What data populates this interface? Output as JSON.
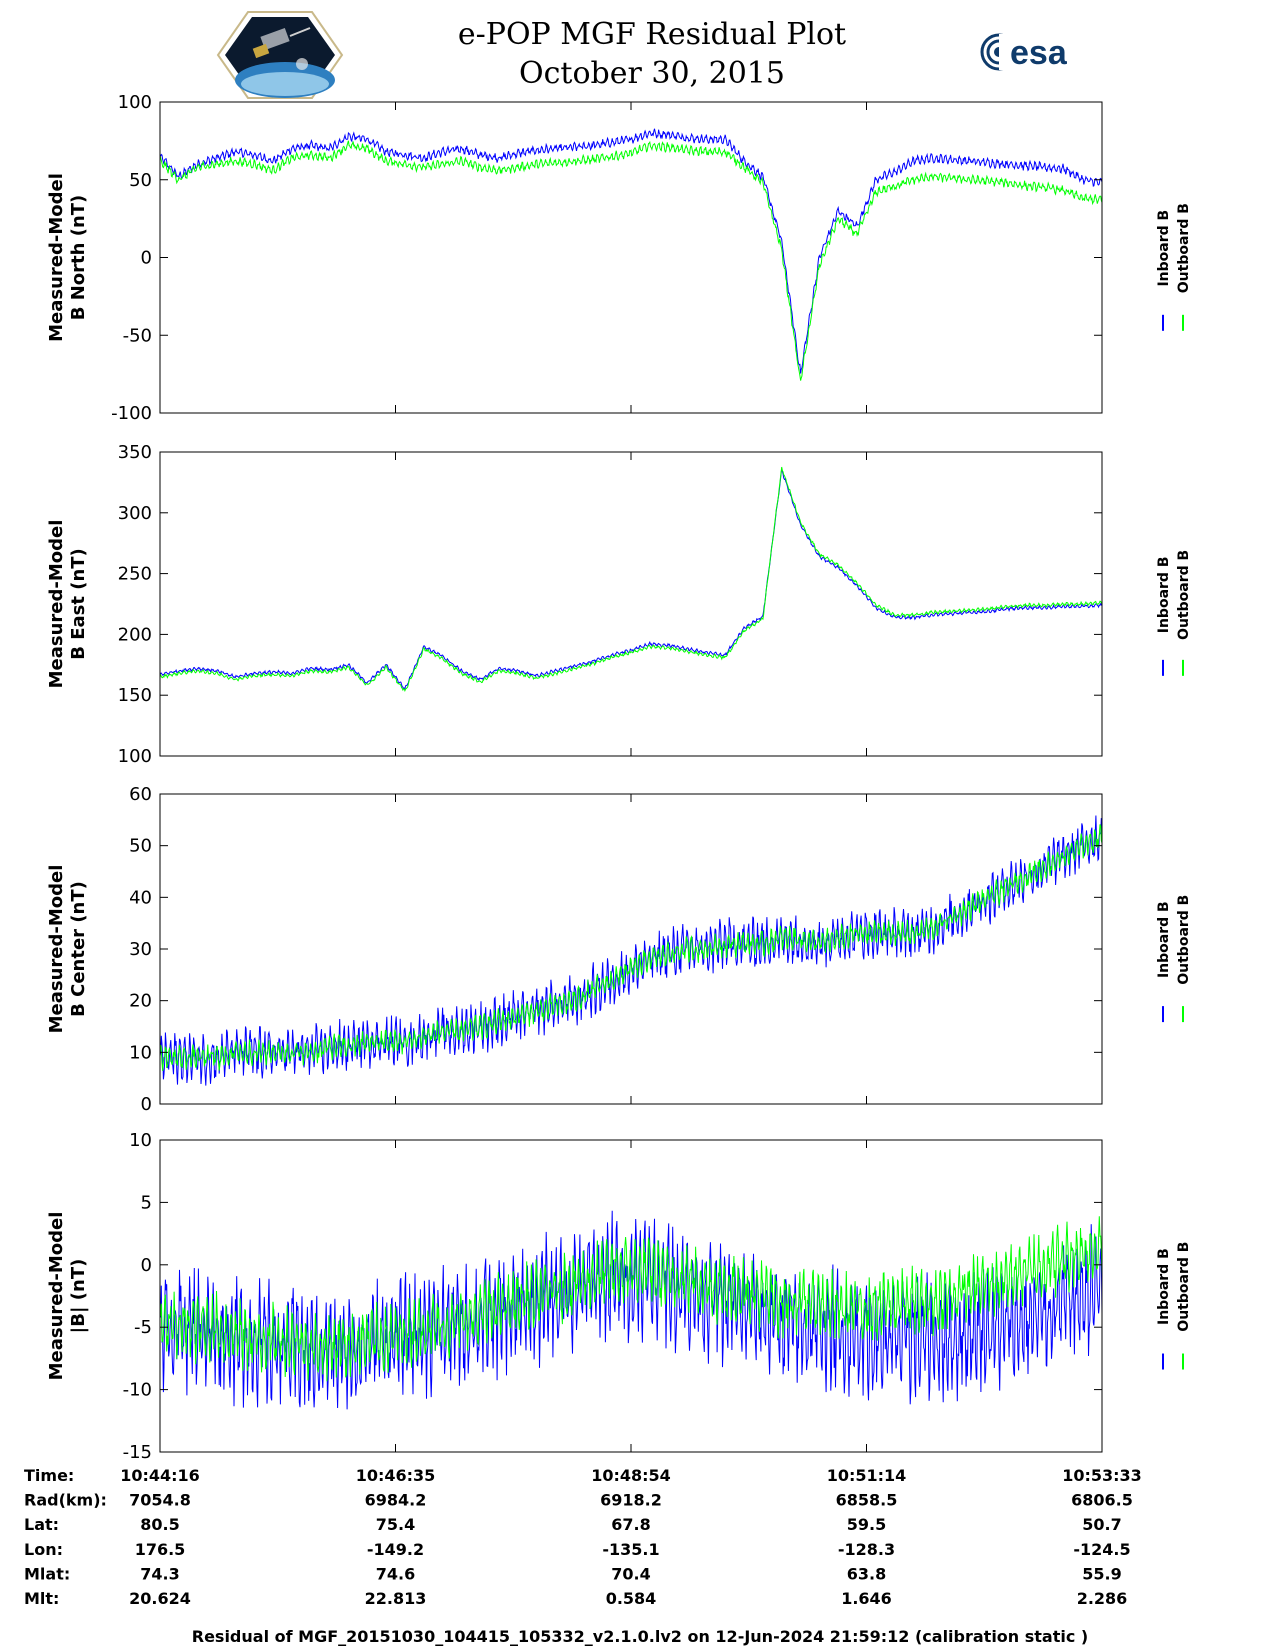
{
  "figure": {
    "title_line1": "e-POP MGF Residual Plot",
    "title_line2": "October 30, 2015",
    "footer": "Residual of MGF_20151030_104415_105332_v2.1.0.lv2 on 12-Jun-2024 21:59:12 (calibration static )",
    "logo_left": "cassiope-mission-patch",
    "logo_right": "esa",
    "colors": {
      "inboard": "#0000ff",
      "outboard": "#00ff00",
      "axis": "#000000"
    }
  },
  "chart_data": [
    {
      "type": "line",
      "ylabel_line1": "Measured-Model",
      "ylabel_line2": "B North (nT)",
      "ylim": [
        -100,
        100
      ],
      "yticks": [
        100,
        50,
        0,
        -50,
        -100
      ],
      "legend": [
        "Inboard B",
        "Outboard B"
      ],
      "x": [
        0,
        2,
        4,
        6,
        8,
        10,
        12,
        14,
        16,
        18,
        20,
        22,
        24,
        26,
        28,
        30,
        32,
        34,
        36,
        38,
        40,
        42,
        44,
        46,
        48,
        50,
        52,
        54,
        56,
        58,
        60,
        62,
        64,
        66,
        68,
        70,
        72,
        74,
        76,
        78,
        80,
        82,
        84,
        86,
        88,
        90,
        92,
        94,
        96,
        98,
        100
      ],
      "series": [
        {
          "name": "Inboard B",
          "color": "#0000ff",
          "noise": 3,
          "values": [
            65,
            52,
            60,
            64,
            68,
            66,
            62,
            70,
            72,
            70,
            78,
            76,
            68,
            66,
            64,
            68,
            70,
            66,
            64,
            67,
            69,
            70,
            71,
            72,
            74,
            76,
            80,
            79,
            77,
            76,
            76,
            62,
            52,
            10,
            -75,
            0,
            30,
            20,
            50,
            55,
            62,
            64,
            63,
            62,
            61,
            60,
            59,
            58,
            57,
            50,
            48
          ]
        },
        {
          "name": "Outboard B",
          "color": "#00ff00",
          "noise": 3,
          "values": [
            62,
            50,
            58,
            60,
            62,
            60,
            56,
            64,
            66,
            64,
            72,
            70,
            62,
            60,
            58,
            60,
            62,
            58,
            56,
            58,
            60,
            61,
            62,
            63,
            65,
            67,
            72,
            71,
            69,
            68,
            68,
            58,
            48,
            5,
            -80,
            -5,
            25,
            15,
            42,
            46,
            50,
            52,
            51,
            50,
            49,
            48,
            46,
            45,
            43,
            38,
            37
          ]
        }
      ]
    },
    {
      "type": "line",
      "ylabel_line1": "Measured-Model",
      "ylabel_line2": "B East (nT)",
      "ylim": [
        100,
        350
      ],
      "yticks": [
        350,
        300,
        250,
        200,
        150,
        100
      ],
      "legend": [
        "Inboard B",
        "Outboard B"
      ],
      "x": [
        0,
        2,
        4,
        6,
        8,
        10,
        12,
        14,
        16,
        18,
        20,
        22,
        24,
        26,
        28,
        30,
        32,
        34,
        36,
        38,
        40,
        42,
        44,
        46,
        48,
        50,
        52,
        54,
        56,
        58,
        60,
        62,
        64,
        66,
        68,
        70,
        72,
        74,
        76,
        78,
        80,
        82,
        84,
        86,
        88,
        90,
        92,
        94,
        96,
        98,
        100
      ],
      "series": [
        {
          "name": "Inboard B",
          "color": "#0000ff",
          "noise": 1.5,
          "values": [
            167,
            170,
            172,
            170,
            165,
            168,
            169,
            168,
            172,
            171,
            175,
            160,
            175,
            155,
            190,
            182,
            170,
            163,
            172,
            170,
            166,
            170,
            174,
            178,
            183,
            187,
            192,
            191,
            188,
            185,
            183,
            205,
            215,
            335,
            290,
            264,
            255,
            240,
            222,
            214,
            214,
            216,
            217,
            218,
            219,
            221,
            222,
            222,
            223,
            223,
            224
          ]
        },
        {
          "name": "Outboard B",
          "color": "#00ff00",
          "noise": 1.5,
          "values": [
            165,
            168,
            170,
            168,
            163,
            166,
            167,
            166,
            170,
            169,
            173,
            158,
            173,
            153,
            188,
            180,
            168,
            161,
            170,
            168,
            164,
            168,
            172,
            176,
            181,
            185,
            190,
            189,
            186,
            183,
            181,
            203,
            213,
            337,
            292,
            266,
            257,
            242,
            224,
            216,
            216,
            218,
            219,
            220,
            221,
            223,
            224,
            224,
            225,
            225,
            226
          ]
        }
      ]
    },
    {
      "type": "line",
      "ylabel_line1": "Measured-Model",
      "ylabel_line2": "B Center (nT)",
      "ylim": [
        0,
        60
      ],
      "yticks": [
        60,
        50,
        40,
        30,
        20,
        10,
        0
      ],
      "legend": [
        "Inboard B",
        "Outboard B"
      ],
      "x": [
        0,
        2,
        4,
        6,
        8,
        10,
        12,
        14,
        16,
        18,
        20,
        22,
        24,
        26,
        28,
        30,
        32,
        34,
        36,
        38,
        40,
        42,
        44,
        46,
        48,
        50,
        52,
        54,
        56,
        58,
        60,
        62,
        64,
        66,
        68,
        70,
        72,
        74,
        76,
        78,
        80,
        82,
        84,
        86,
        88,
        90,
        92,
        94,
        96,
        98,
        100
      ],
      "series": [
        {
          "name": "Inboard B",
          "color": "#0000ff",
          "noise": 5,
          "values": [
            9,
            9,
            9,
            9,
            10,
            10,
            10,
            10,
            10,
            11,
            11,
            12,
            12,
            12,
            13,
            14,
            14,
            15,
            16,
            17,
            18,
            19,
            20,
            22,
            24,
            26,
            28,
            29,
            30,
            30,
            31,
            31,
            31,
            32,
            32,
            31,
            32,
            33,
            33,
            33,
            33,
            34,
            36,
            38,
            40,
            42,
            44,
            46,
            48,
            50,
            52
          ]
        },
        {
          "name": "Outboard B",
          "color": "#00ff00",
          "noise": 2.5,
          "values": [
            9,
            9,
            9,
            9,
            10,
            10,
            10,
            10,
            10,
            11,
            11,
            12,
            12,
            12,
            13,
            14,
            14,
            15,
            16,
            17,
            18,
            19,
            20,
            22,
            24,
            26,
            28,
            29,
            30,
            30,
            31,
            31,
            31,
            32,
            32,
            31,
            32,
            33,
            33,
            33,
            33,
            34,
            36,
            38,
            40,
            42,
            44,
            46,
            48,
            50,
            52
          ]
        }
      ]
    },
    {
      "type": "line",
      "ylabel_line1": "Measured-Model",
      "ylabel_line2": "|B| (nT)",
      "ylim": [
        -15,
        10
      ],
      "yticks": [
        10,
        5,
        0,
        -5,
        -10,
        -15
      ],
      "legend": [
        "Inboard B",
        "Outboard B"
      ],
      "x": [
        0,
        2,
        4,
        6,
        8,
        10,
        12,
        14,
        16,
        18,
        20,
        22,
        24,
        26,
        28,
        30,
        32,
        34,
        36,
        38,
        40,
        42,
        44,
        46,
        48,
        50,
        52,
        54,
        56,
        58,
        60,
        62,
        64,
        66,
        68,
        70,
        72,
        74,
        76,
        78,
        80,
        82,
        84,
        86,
        88,
        90,
        92,
        94,
        96,
        98,
        100
      ],
      "series": [
        {
          "name": "Inboard B",
          "color": "#0000ff",
          "noise": 5,
          "values": [
            -5,
            -5,
            -5,
            -5.5,
            -6,
            -6,
            -6.5,
            -6.5,
            -7,
            -7,
            -7,
            -6.5,
            -6,
            -6,
            -5.5,
            -5,
            -5,
            -4.5,
            -4,
            -3.5,
            -3,
            -2.5,
            -2,
            -1.5,
            -1,
            -1,
            -1,
            -1.5,
            -2,
            -2.5,
            -3,
            -3.5,
            -4,
            -4.5,
            -5,
            -5,
            -5.5,
            -5.5,
            -6,
            -6,
            -6,
            -6,
            -6,
            -5.5,
            -5,
            -5,
            -4.5,
            -4,
            -3,
            -2.5,
            -1.5
          ]
        },
        {
          "name": "Outboard B",
          "color": "#00ff00",
          "noise": 2.8,
          "values": [
            -5,
            -5,
            -5,
            -5,
            -5.5,
            -6,
            -6,
            -6,
            -6.5,
            -6.5,
            -6.5,
            -6,
            -6,
            -5.5,
            -5,
            -5,
            -4.5,
            -4,
            -3.5,
            -3,
            -2.5,
            -2,
            -1.5,
            -1,
            -0.5,
            -0.5,
            -0.5,
            -1,
            -1,
            -1.5,
            -2,
            -2,
            -2.5,
            -3,
            -3,
            -3,
            -3.5,
            -3.5,
            -3.5,
            -3,
            -3,
            -3,
            -2.5,
            -2,
            -1.5,
            -1,
            -0.5,
            0,
            0.5,
            1,
            1.5
          ]
        }
      ]
    }
  ],
  "info_table": {
    "labels": [
      "Time:",
      "Rad(km):",
      "Lat:",
      "Lon:",
      "Mlat:",
      "Mlt:"
    ],
    "columns": [
      [
        "10:44:16",
        "7054.8",
        "80.5",
        "176.5",
        "74.3",
        "20.624"
      ],
      [
        "10:46:35",
        "6984.2",
        "75.4",
        "-149.2",
        "74.6",
        "22.813"
      ],
      [
        "10:48:54",
        "6918.2",
        "67.8",
        "-135.1",
        "70.4",
        "0.584"
      ],
      [
        "10:51:14",
        "6858.5",
        "59.5",
        "-128.3",
        "63.8",
        "1.646"
      ],
      [
        "10:53:33",
        "6806.5",
        "50.7",
        "-124.5",
        "55.9",
        "2.286"
      ]
    ]
  }
}
